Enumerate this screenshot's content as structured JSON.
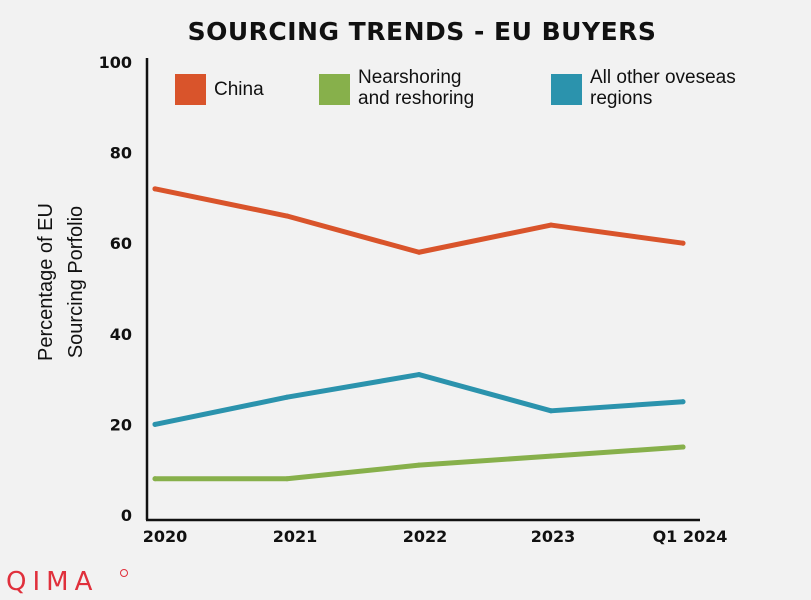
{
  "chart_data": {
    "type": "line",
    "title": "SOURCING TRENDS - EU BUYERS",
    "xlabel": "",
    "ylabel_lines": [
      "Percentage of EU",
      "Sourcing Porfolio"
    ],
    "categories": [
      "2020",
      "2021",
      "2022",
      "2023",
      "Q1 2024"
    ],
    "ylim": [
      0,
      100
    ],
    "yticks": [
      0,
      20,
      40,
      60,
      80,
      100
    ],
    "grid": false,
    "legend_position": "top",
    "series": [
      {
        "name": "China",
        "label_lines": [
          "China"
        ],
        "color": "#d9542b",
        "values": [
          72,
          66,
          58,
          64,
          60
        ]
      },
      {
        "name": "Nearshoring and reshoring",
        "label_lines": [
          "Nearshoring",
          "and reshoring"
        ],
        "color": "#87b04b",
        "values": [
          8,
          8,
          11,
          13,
          15
        ]
      },
      {
        "name": "All other oveseas regions",
        "label_lines": [
          "All other oveseas",
          "regions"
        ],
        "color": "#2b93ad",
        "values": [
          20,
          26,
          31,
          23,
          25
        ]
      }
    ]
  },
  "brand": {
    "logo_text": "QIMA",
    "logo_color": "#e0303c"
  }
}
